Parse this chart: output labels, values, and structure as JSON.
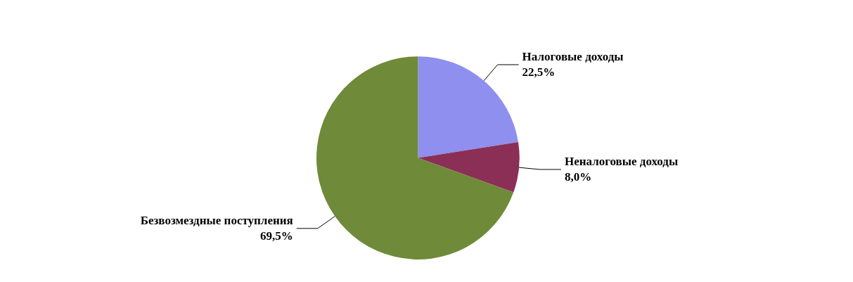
{
  "chart_data": {
    "type": "pie",
    "categories": [
      "Налоговые доходы",
      "Неналоговые доходы",
      "Безвозмездные поступления"
    ],
    "values": [
      22.5,
      8.0,
      69.5
    ],
    "value_labels": [
      "22,5%",
      "8,0%",
      "69,5%"
    ],
    "colors": [
      "#8e8fee",
      "#8b2f57",
      "#6f8a38"
    ],
    "legend": false
  }
}
